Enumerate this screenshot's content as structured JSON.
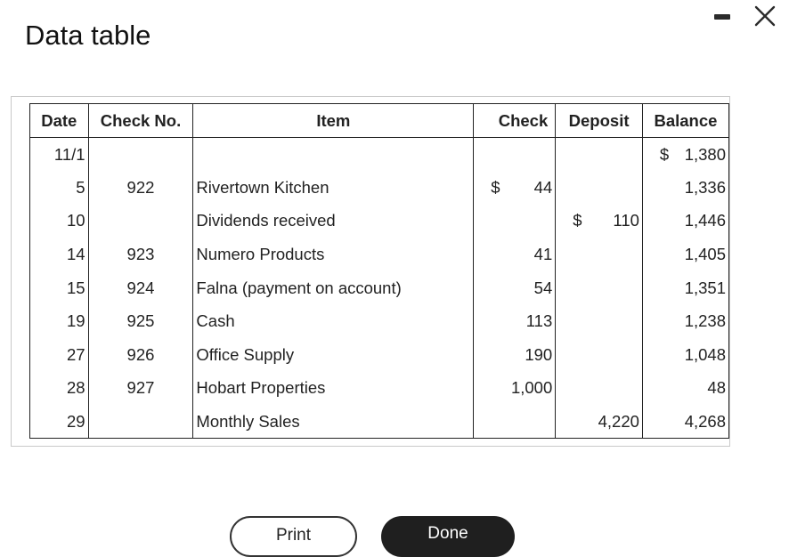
{
  "window": {
    "title": "Data table"
  },
  "table": {
    "headers": {
      "date": "Date",
      "check_no": "Check No.",
      "item": "Item",
      "check": "Check",
      "deposit": "Deposit",
      "balance": "Balance"
    },
    "rows": [
      {
        "date": "11/1",
        "check_no": "",
        "item": "",
        "check_cur": "",
        "check": "",
        "deposit_cur": "",
        "deposit": "",
        "balance_cur": "$",
        "balance": "1,380"
      },
      {
        "date": "5",
        "check_no": "922",
        "item": "Rivertown Kitchen",
        "check_cur": "$",
        "check": "44",
        "deposit_cur": "",
        "deposit": "",
        "balance_cur": "",
        "balance": "1,336"
      },
      {
        "date": "10",
        "check_no": "",
        "item": "Dividends received",
        "check_cur": "",
        "check": "",
        "deposit_cur": "$",
        "deposit": "110",
        "balance_cur": "",
        "balance": "1,446"
      },
      {
        "date": "14",
        "check_no": "923",
        "item": "Numero Products",
        "check_cur": "",
        "check": "41",
        "deposit_cur": "",
        "deposit": "",
        "balance_cur": "",
        "balance": "1,405"
      },
      {
        "date": "15",
        "check_no": "924",
        "item": "Falna (payment on account)",
        "check_cur": "",
        "check": "54",
        "deposit_cur": "",
        "deposit": "",
        "balance_cur": "",
        "balance": "1,351"
      },
      {
        "date": "19",
        "check_no": "925",
        "item": "Cash",
        "check_cur": "",
        "check": "113",
        "deposit_cur": "",
        "deposit": "",
        "balance_cur": "",
        "balance": "1,238"
      },
      {
        "date": "27",
        "check_no": "926",
        "item": "Office Supply",
        "check_cur": "",
        "check": "190",
        "deposit_cur": "",
        "deposit": "",
        "balance_cur": "",
        "balance": "1,048"
      },
      {
        "date": "28",
        "check_no": "927",
        "item": "Hobart Properties",
        "check_cur": "",
        "check": "1,000",
        "deposit_cur": "",
        "deposit": "",
        "balance_cur": "",
        "balance": "48"
      },
      {
        "date": "29",
        "check_no": "",
        "item": "Monthly Sales",
        "check_cur": "",
        "check": "",
        "deposit_cur": "",
        "deposit": "4,220",
        "balance_cur": "",
        "balance": "4,268"
      }
    ]
  },
  "buttons": {
    "print": "Print",
    "done": "Done"
  },
  "icons": {
    "minimize": "minimize-icon",
    "close": "close-icon"
  }
}
